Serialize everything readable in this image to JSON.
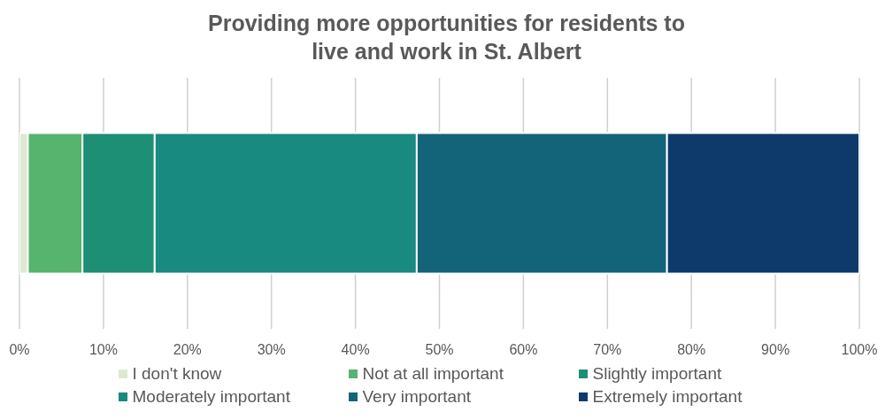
{
  "chart_data": {
    "type": "bar",
    "orientation": "horizontal",
    "stacked": true,
    "title": "Providing more opportunities for residents to live and work in St. Albert",
    "categories": [
      null
    ],
    "series": [
      {
        "name": "I don't know",
        "color": "#dde9cf",
        "values": [
          1
        ]
      },
      {
        "name": "Not at all important",
        "color": "#56b46e",
        "values": [
          6.5
        ]
      },
      {
        "name": "Slightly important",
        "color": "#1c8f75",
        "values": [
          8.6
        ]
      },
      {
        "name": "Moderately important",
        "color": "#188a80",
        "values": [
          31.2
        ]
      },
      {
        "name": "Very important",
        "color": "#136478",
        "values": [
          29.8
        ]
      },
      {
        "name": "Extremely important",
        "color": "#0e3a6b",
        "values": [
          22.9
        ]
      }
    ],
    "xlim": [
      0,
      100
    ],
    "xticks": [
      {
        "value": 0,
        "label": "0%"
      },
      {
        "value": 10,
        "label": "10%"
      },
      {
        "value": 20,
        "label": "20%"
      },
      {
        "value": 30,
        "label": "30%"
      },
      {
        "value": 40,
        "label": "40%"
      },
      {
        "value": 50,
        "label": "50%"
      },
      {
        "value": 60,
        "label": "60%"
      },
      {
        "value": 70,
        "label": "70%"
      },
      {
        "value": 80,
        "label": "80%"
      },
      {
        "value": 90,
        "label": "90%"
      },
      {
        "value": 100,
        "label": "100%"
      }
    ],
    "grid": "x",
    "legend": "bottom"
  }
}
